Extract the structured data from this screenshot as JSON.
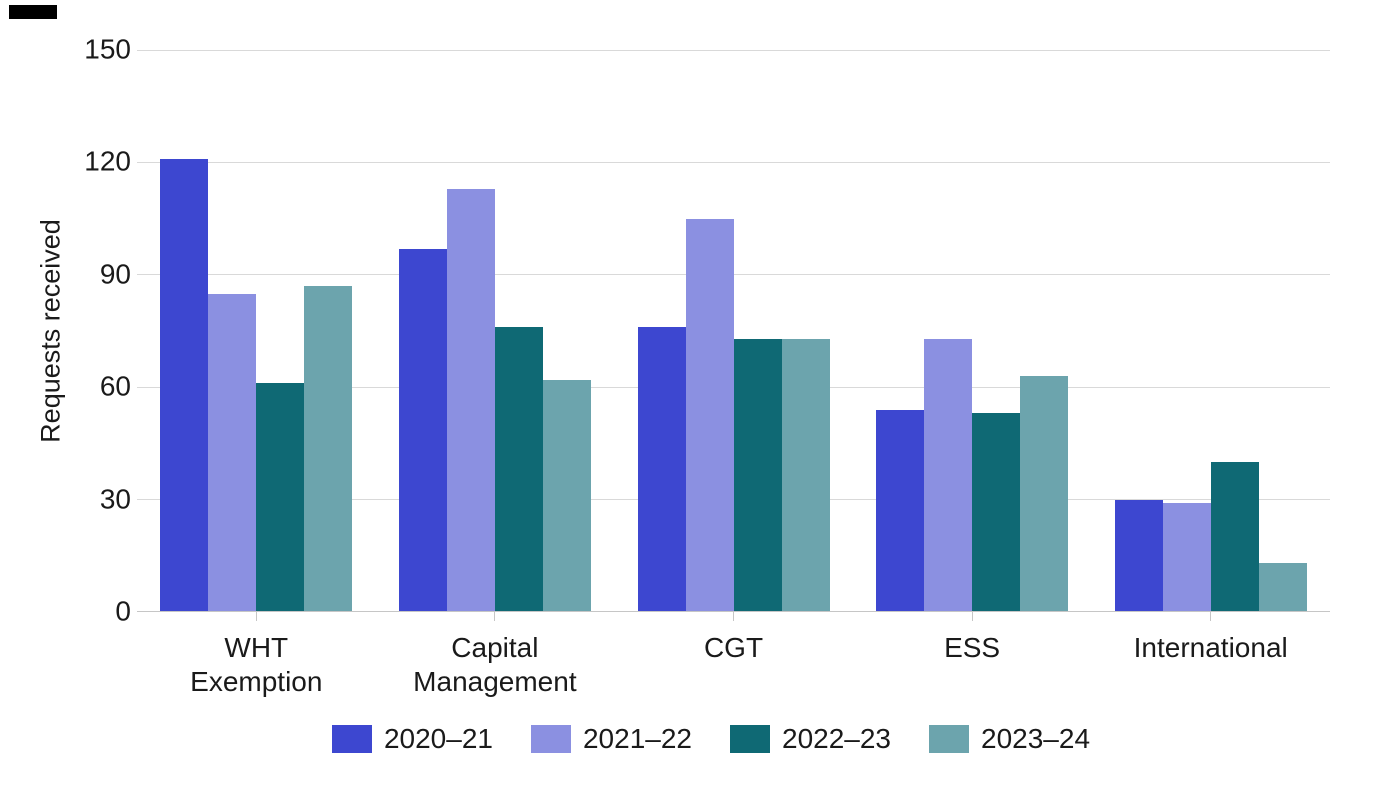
{
  "chart_data": {
    "type": "bar",
    "ylabel": "Requests received",
    "ylim": [
      0,
      150
    ],
    "yticks": [
      0,
      30,
      60,
      90,
      120,
      150
    ],
    "grid": true,
    "legend_position": "bottom",
    "categories": [
      "WHT Exemption",
      "Capital Management",
      "CGT",
      "ESS",
      "International"
    ],
    "category_label_lines": [
      [
        "WHT",
        "Exemption"
      ],
      [
        "Capital",
        "Management"
      ],
      [
        "CGT"
      ],
      [
        "ESS"
      ],
      [
        "International"
      ]
    ],
    "series": [
      {
        "name": "2020–21",
        "color": "#3d47d0",
        "values": [
          121,
          97,
          76,
          54,
          30
        ]
      },
      {
        "name": "2021–22",
        "color": "#8b90e1",
        "values": [
          85,
          113,
          105,
          73,
          29
        ]
      },
      {
        "name": "2022–23",
        "color": "#0f6974",
        "values": [
          61,
          76,
          73,
          53,
          40
        ]
      },
      {
        "name": "2023–24",
        "color": "#6ca4ad",
        "values": [
          87,
          62,
          73,
          63,
          13
        ]
      }
    ]
  },
  "colors": {
    "background": "#ffffff",
    "gridline": "#d9d9d9",
    "axis_line": "#c6c6c6",
    "text": "#1a1a1a"
  }
}
